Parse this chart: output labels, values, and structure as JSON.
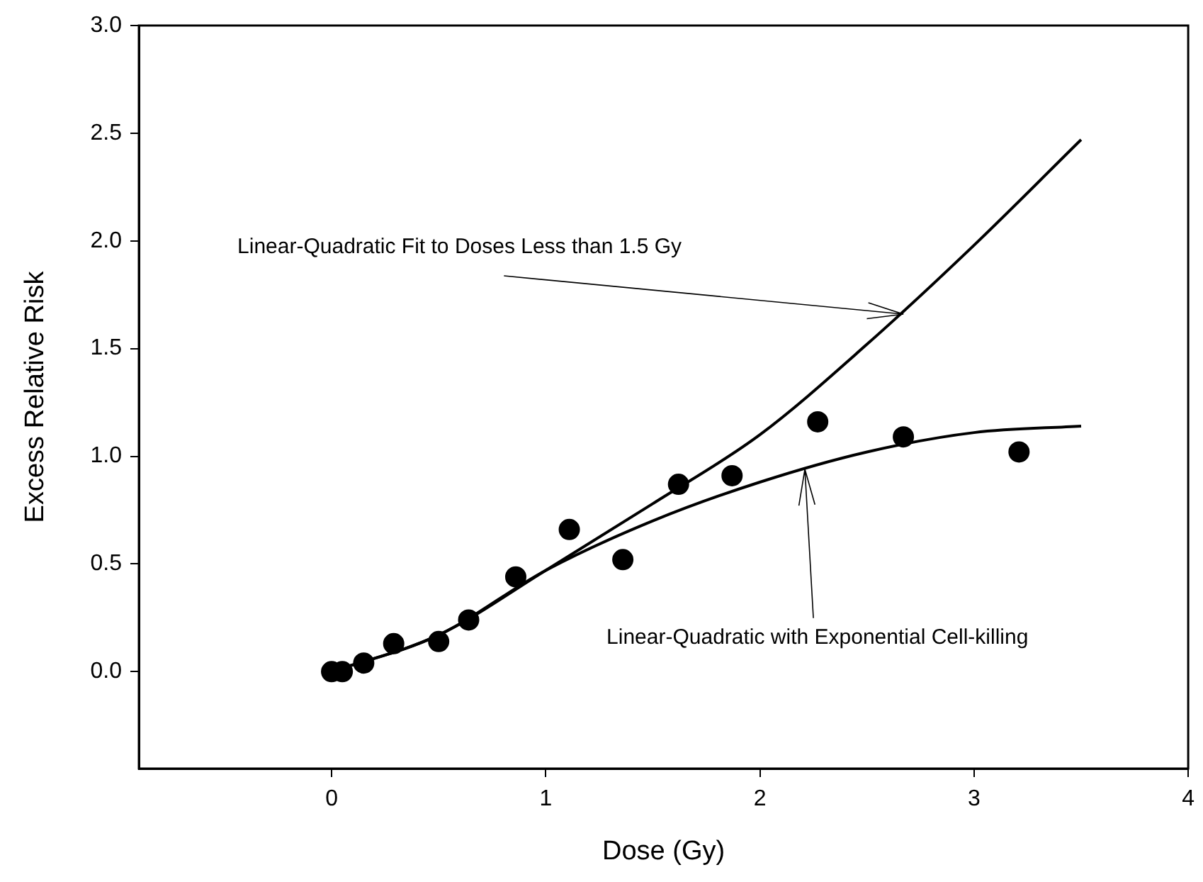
{
  "chart_data": {
    "type": "scatter",
    "xlabel": "Dose (Gy)",
    "ylabel": "Excess Relative Risk",
    "xlim": [
      -0.9,
      4
    ],
    "xticks": [
      0,
      1,
      2,
      3,
      4
    ],
    "ylim": [
      -0.45,
      3
    ],
    "yticks": [
      {
        "value": 0,
        "label": "0.0"
      },
      {
        "value": 0.5,
        "label": "0.5"
      },
      {
        "value": 1,
        "label": "1.0"
      },
      {
        "value": 1.5,
        "label": "1.5"
      },
      {
        "value": 2,
        "label": "2.0"
      },
      {
        "value": 2.5,
        "label": "2.5"
      },
      {
        "value": 3,
        "label": "3.0"
      }
    ],
    "series": [
      {
        "marker": "circle",
        "color": "#000000",
        "x": [
          0,
          0.05,
          0.15,
          0.29,
          0.5,
          0.64,
          0.86,
          1.11,
          1.36,
          1.62,
          1.87,
          2.27,
          2.67,
          3.21
        ],
        "values": [
          0,
          0,
          0.04,
          0.13,
          0.14,
          0.24,
          0.44,
          0.66,
          0.52,
          0.87,
          0.91,
          1.16,
          1.09,
          1.02
        ]
      },
      {
        "type": "line",
        "marker": "none",
        "color": "#000000",
        "x": [
          0,
          0.5,
          1,
          1.5,
          2,
          2.5,
          3,
          3.5
        ],
        "values": [
          0,
          0.17,
          0.47,
          0.78,
          1.1,
          1.52,
          1.98,
          2.47
        ]
      },
      {
        "type": "line",
        "marker": "none",
        "color": "#000000",
        "x": [
          0,
          0.5,
          1,
          1.5,
          2,
          2.5,
          3,
          3.5
        ],
        "values": [
          0,
          0.17,
          0.47,
          0.7,
          0.88,
          1.02,
          1.11,
          1.14
        ]
      }
    ],
    "annotations": [
      {
        "text": "Linear-Quadratic Fit to Doses Less than 1.5 Gy",
        "x": 2.67,
        "y": 1.66
      },
      {
        "text": "Linear-Quadratic with Exponential Cell-killing",
        "x": 2.21,
        "y": 0.94
      }
    ]
  }
}
